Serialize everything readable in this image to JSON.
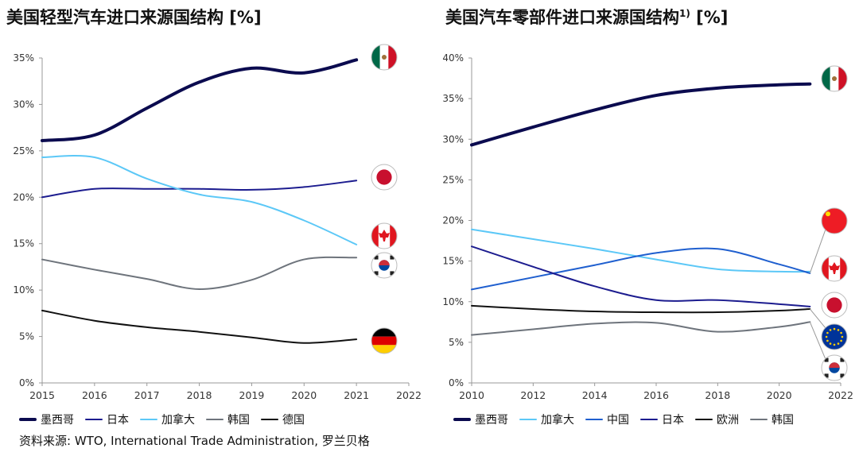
{
  "left_title": "美国轻型汽车进口来源国结构 [%]",
  "right_title_main": "美国汽车零部件进口来源国结构",
  "right_title_sup": "1)",
  "right_title_unit": " [%]",
  "source": "资料来源: WTO, International Trade Administration, 罗兰贝格",
  "chart_data": [
    {
      "type": "line",
      "title": "美国轻型汽车进口来源国结构 [%]",
      "xlim": [
        2015,
        2022
      ],
      "ylim": [
        0,
        35
      ],
      "xticks": [
        "2015",
        "2016",
        "2017",
        "2018",
        "2019",
        "2020",
        "2021",
        "2022"
      ],
      "yticks": [
        "0%",
        "5%",
        "10%",
        "15%",
        "20%",
        "25%",
        "30%",
        "35%"
      ],
      "x": [
        2015,
        2016,
        2017,
        2018,
        2019,
        2020,
        2021
      ],
      "series": [
        {
          "name": "墨西哥",
          "color": "#0b0b4f",
          "width": 4,
          "flag": "mexico",
          "values": [
            26.1,
            26.7,
            29.6,
            32.4,
            33.9,
            33.4,
            34.8
          ]
        },
        {
          "name": "日本",
          "color": "#1c1c8f",
          "width": 2,
          "flag": "japan",
          "values": [
            20.0,
            20.9,
            20.9,
            20.9,
            20.8,
            21.1,
            21.8
          ]
        },
        {
          "name": "加拿大",
          "color": "#5cc8f7",
          "width": 2,
          "flag": "canada",
          "values": [
            24.3,
            24.3,
            22.0,
            20.3,
            19.5,
            17.5,
            14.9
          ]
        },
        {
          "name": "韩国",
          "color": "#6e747c",
          "width": 2,
          "flag": "korea",
          "values": [
            13.3,
            12.2,
            11.2,
            10.1,
            11.1,
            13.3,
            13.5
          ]
        },
        {
          "name": "德国",
          "color": "#111111",
          "width": 2,
          "flag": "germany",
          "values": [
            7.8,
            6.7,
            6.0,
            5.5,
            4.9,
            4.3,
            4.7
          ]
        }
      ]
    },
    {
      "type": "line",
      "title": "美国汽车零部件进口来源国结构1) [%]",
      "xlim": [
        2010,
        2022
      ],
      "ylim": [
        0,
        40
      ],
      "xticks": [
        "2010",
        "2012",
        "2014",
        "2016",
        "2018",
        "2020",
        "2022"
      ],
      "yticks": [
        "0%",
        "5%",
        "10%",
        "15%",
        "20%",
        "25%",
        "30%",
        "35%",
        "40%"
      ],
      "x": [
        2010,
        2012,
        2014,
        2016,
        2018,
        2020,
        2021
      ],
      "series": [
        {
          "name": "墨西哥",
          "color": "#0b0b4f",
          "width": 4,
          "flag": "mexico",
          "values": [
            29.3,
            31.5,
            33.6,
            35.4,
            36.3,
            36.7,
            36.8
          ]
        },
        {
          "name": "加拿大",
          "color": "#5cc8f7",
          "width": 2,
          "flag": "canada",
          "values": [
            18.9,
            17.7,
            16.5,
            15.2,
            14.0,
            13.7,
            13.7
          ]
        },
        {
          "name": "中国",
          "color": "#1f5fcf",
          "width": 2,
          "flag": "china",
          "values": [
            11.5,
            13.0,
            14.5,
            16.0,
            16.5,
            14.6,
            13.5
          ]
        },
        {
          "name": "日本",
          "color": "#1c1c8f",
          "width": 2,
          "flag": "japan",
          "values": [
            16.8,
            14.3,
            11.9,
            10.2,
            10.2,
            9.7,
            9.4
          ]
        },
        {
          "name": "欧洲",
          "color": "#111111",
          "width": 2,
          "flag": "eu",
          "values": [
            9.5,
            9.1,
            8.8,
            8.7,
            8.7,
            8.9,
            9.1
          ]
        },
        {
          "name": "韩国",
          "color": "#6e747c",
          "width": 2,
          "flag": "korea",
          "values": [
            5.9,
            6.6,
            7.3,
            7.4,
            6.3,
            6.9,
            7.5
          ]
        }
      ]
    }
  ]
}
